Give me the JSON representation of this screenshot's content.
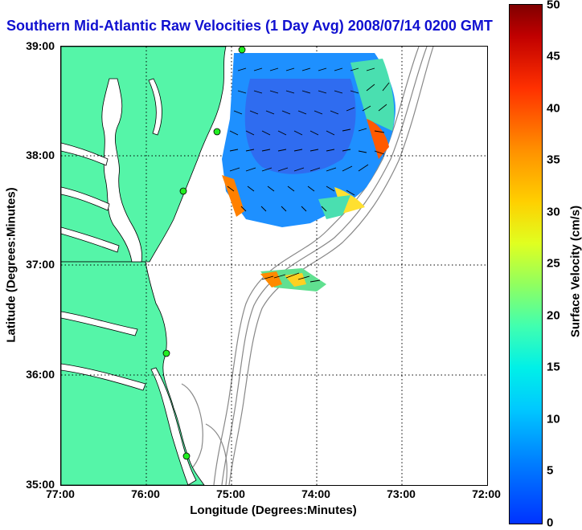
{
  "title": "Southern Mid-Atlantic Raw Velocities (1 Day Avg) 2008/07/14 0200 GMT",
  "x_label": "Longitude (Degrees:Minutes)",
  "y_label": "Latitude (Degrees:Minutes)",
  "colorbar_label": "Surface Velocity (cm/s)",
  "x_ticks": [
    "77:00",
    "76:00",
    "75:00",
    "74:00",
    "73:00",
    "72:00"
  ],
  "y_ticks": [
    "39:00",
    "38:00",
    "37:00",
    "36:00",
    "35:00"
  ],
  "colorbar_ticks": [
    "50",
    "45",
    "40",
    "35",
    "30",
    "25",
    "20",
    "15",
    "10",
    "5",
    "0"
  ],
  "colors": {
    "title": "#1010d0",
    "land": "#55f5a8",
    "contour": "#888888",
    "station": "#22ee22"
  },
  "map": {
    "lon_range": [
      -77,
      -72
    ],
    "lat_range": [
      35,
      39
    ],
    "grid": true,
    "colorbar_range_cm_s": [
      0,
      50
    ]
  }
}
